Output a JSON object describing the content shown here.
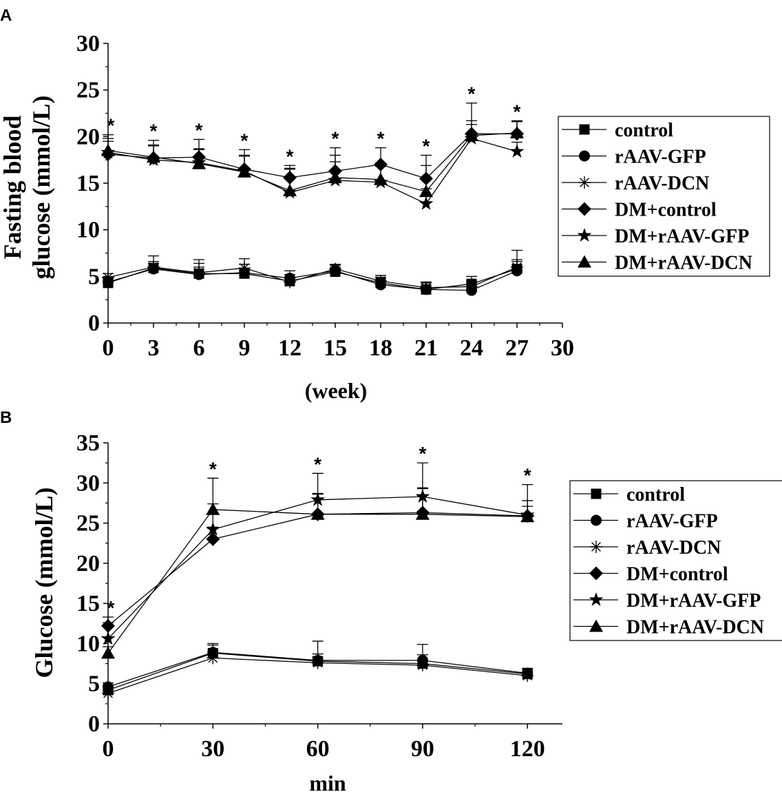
{
  "chart_data": [
    {
      "type": "line",
      "panel_label": "A",
      "title": "",
      "xlabel": "(week)",
      "ylabel": [
        "Fasting blood",
        "glucose (mmol/L)"
      ],
      "xlim": [
        0,
        30
      ],
      "ylim": [
        0,
        30
      ],
      "xticks": [
        0,
        3,
        6,
        9,
        12,
        15,
        18,
        21,
        24,
        27,
        30
      ],
      "yticks": [
        0,
        5,
        10,
        15,
        20,
        25,
        30
      ],
      "x": [
        0,
        3,
        6,
        9,
        12,
        15,
        18,
        21,
        24,
        27
      ],
      "series": [
        {
          "name": "control",
          "marker": "square",
          "values": [
            4.3,
            5.9,
            5.3,
            5.3,
            4.5,
            5.5,
            4.3,
            3.6,
            4.2,
            5.8
          ],
          "err": [
            0.5,
            0.7,
            1.5,
            1.0,
            0.7,
            0.8,
            0.8,
            0.8,
            0.8,
            2.0
          ]
        },
        {
          "name": "rAAV-GFP",
          "marker": "circle",
          "values": [
            4.4,
            5.8,
            5.2,
            5.4,
            4.8,
            5.6,
            4.1,
            3.6,
            3.5,
            5.6
          ],
          "err": [
            0.4,
            0.6,
            0.8,
            0.9,
            0.8,
            0.6,
            0.8,
            0.7,
            0.8,
            1.0
          ]
        },
        {
          "name": "rAAV-DCN",
          "marker": "asterisk",
          "values": [
            4.9,
            6.0,
            5.4,
            5.9,
            4.4,
            5.8,
            4.5,
            3.8,
            3.9,
            6.0
          ],
          "err": [
            0.4,
            1.2,
            1.0,
            1.0,
            0.5,
            0.4,
            0.6,
            0.5,
            0.6,
            0.8
          ]
        },
        {
          "name": "DM+control",
          "marker": "diamond",
          "values": [
            18.1,
            17.7,
            17.8,
            16.5,
            15.6,
            16.3,
            17.0,
            15.5,
            20.3,
            20.3
          ],
          "err": [
            1.4,
            1.9,
            1.9,
            2.1,
            1.3,
            2.5,
            1.8,
            2.5,
            3.3,
            1.4
          ]
        },
        {
          "name": "DM+rAAV-GFP",
          "marker": "star",
          "values": [
            18.3,
            17.5,
            17.2,
            16.3,
            14.0,
            15.3,
            15.1,
            12.8,
            19.8,
            18.4
          ],
          "err": [
            1.5,
            1.6,
            1.5,
            1.6,
            2.5,
            2.0,
            1.7,
            1.6,
            1.5,
            1.0
          ]
        },
        {
          "name": "DM+rAAV-DCN",
          "marker": "triangle",
          "values": [
            18.5,
            17.8,
            17.1,
            16.2,
            14.2,
            15.6,
            15.4,
            14.1,
            20.1,
            20.4
          ],
          "err": [
            1.7,
            1.2,
            1.5,
            1.8,
            2.4,
            2.4,
            1.7,
            2.8,
            1.6,
            1.2
          ]
        }
      ],
      "significance": {
        "marker": "*",
        "x": [
          0,
          3,
          6,
          9,
          12,
          15,
          18,
          21,
          24,
          27
        ]
      }
    },
    {
      "type": "line",
      "panel_label": "B",
      "title": "",
      "xlabel": "min",
      "ylabel": [
        "Glucose (mmol/L)"
      ],
      "xlim": [
        0,
        130
      ],
      "ylim": [
        0,
        35
      ],
      "xticks": [
        0,
        30,
        60,
        90,
        120
      ],
      "yticks": [
        0,
        5,
        10,
        15,
        20,
        25,
        30,
        35
      ],
      "x": [
        0,
        30,
        60,
        90,
        120
      ],
      "series": [
        {
          "name": "control",
          "marker": "square",
          "values": [
            4.2,
            8.8,
            7.8,
            7.5,
            6.2
          ],
          "err": [
            0.6,
            1.2,
            2.5,
            2.4,
            0.7
          ]
        },
        {
          "name": "rAAV-GFP",
          "marker": "circle",
          "values": [
            4.6,
            8.9,
            7.9,
            7.9,
            6.3
          ],
          "err": [
            0.5,
            0.9,
            0.8,
            0.7,
            0.6
          ]
        },
        {
          "name": "rAAV-DCN",
          "marker": "asterisk",
          "values": [
            3.8,
            8.2,
            7.6,
            7.3,
            6.0
          ],
          "err": [
            0.4,
            0.6,
            0.7,
            0.6,
            0.5
          ]
        },
        {
          "name": "DM+control",
          "marker": "diamond",
          "values": [
            12.2,
            23.0,
            26.1,
            26.3,
            25.9
          ],
          "err": [
            1.1,
            1.5,
            2.5,
            3.0,
            1.2
          ]
        },
        {
          "name": "DM+rAAV-GFP",
          "marker": "star",
          "values": [
            10.6,
            24.2,
            27.9,
            28.3,
            26.0
          ],
          "err": [
            2.0,
            3.2,
            3.3,
            4.2,
            3.8
          ]
        },
        {
          "name": "DM+rAAV-DCN",
          "marker": "triangle",
          "values": [
            8.8,
            26.7,
            26.1,
            26.1,
            25.8
          ],
          "err": [
            0.8,
            3.9,
            2.6,
            3.3,
            2.0
          ]
        }
      ],
      "significance": {
        "marker": "*",
        "x": [
          0,
          30,
          60,
          90,
          120
        ]
      }
    }
  ]
}
